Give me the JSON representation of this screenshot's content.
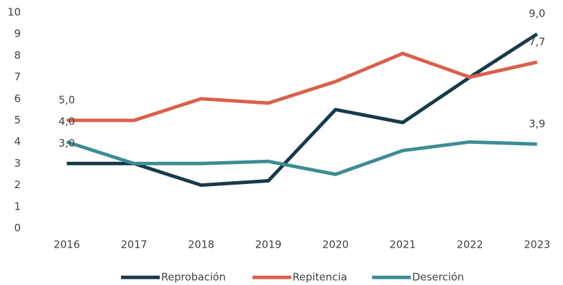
{
  "chart_data": {
    "type": "line",
    "categories": [
      "2016",
      "2017",
      "2018",
      "2019",
      "2020",
      "2021",
      "2022",
      "2023"
    ],
    "series": [
      {
        "name": "Reprobación",
        "color": "#173a4a",
        "values": [
          3,
          3,
          2,
          2.2,
          5.5,
          4.9,
          7,
          9
        ],
        "value_labels": [
          "3,0",
          null,
          null,
          null,
          null,
          null,
          null,
          "9,0"
        ]
      },
      {
        "name": "Repitencia",
        "color": "#d9604a",
        "values": [
          5,
          5,
          6,
          5.8,
          6.8,
          8.1,
          7,
          7.7
        ],
        "value_labels": [
          "5,0",
          null,
          null,
          null,
          null,
          null,
          null,
          "7,7"
        ]
      },
      {
        "name": "Deserción",
        "color": "#3f8c93",
        "values": [
          4,
          3,
          3,
          3.1,
          2.5,
          3.6,
          4,
          3.9
        ],
        "value_labels": [
          "4,0",
          null,
          null,
          null,
          null,
          null,
          null,
          "3,9"
        ]
      }
    ],
    "ylim": [
      0,
      10
    ],
    "yticks": [
      0,
      1,
      2,
      3,
      4,
      5,
      6,
      7,
      8,
      9,
      10
    ],
    "grid": false,
    "legend": "bottom"
  }
}
